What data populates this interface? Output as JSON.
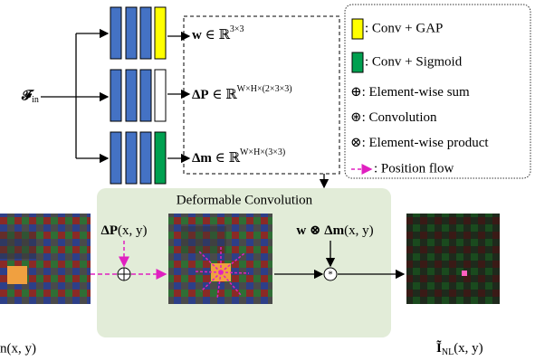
{
  "input": {
    "symbol": "𝓕",
    "sub": "in"
  },
  "outputs": [
    {
      "symbol": "w",
      "rel": " ∈ ℝ",
      "sup": "3×3"
    },
    {
      "symbol": "ΔP",
      "rel": " ∈ ℝ",
      "sup": "W×H×(2×3×3)"
    },
    {
      "symbol": "Δm",
      "rel": " ∈ ℝ",
      "sup": "W×H×(3×3)"
    }
  ],
  "legend": [
    {
      "text": ": Conv + GAP"
    },
    {
      "text": ": Conv + Sigmoid"
    },
    {
      "symbol": "⊕",
      "text": ": Element-wise sum"
    },
    {
      "symbol": "⊛",
      "text": ": Convolution"
    },
    {
      "symbol": "⊗",
      "text": ": Element-wise product"
    },
    {
      "text": ": Position flow"
    }
  ],
  "panel": {
    "title": "Deformable Convolution"
  },
  "offset_label": {
    "symbol": "ΔP",
    "args": "(x, y)"
  },
  "weight_label": {
    "w": "w",
    "op": " ⊗ ",
    "symbol": "Δm",
    "args": "(x, y)"
  },
  "input_label": {
    "text": "n(x, y)"
  },
  "output_label": {
    "symbol": "Ĩ",
    "sub": "NL",
    "args": "(x, y)"
  }
}
